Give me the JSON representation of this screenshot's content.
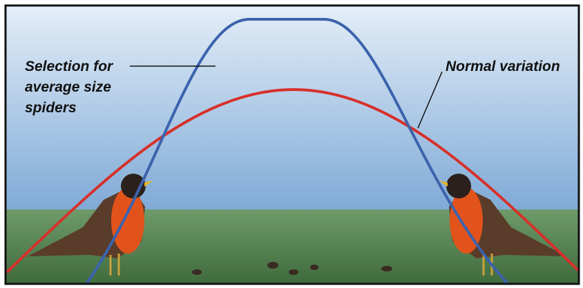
{
  "labels": {
    "selection": [
      "Selection for",
      "average size",
      "spiders"
    ],
    "normal": "Normal variation"
  }
}
